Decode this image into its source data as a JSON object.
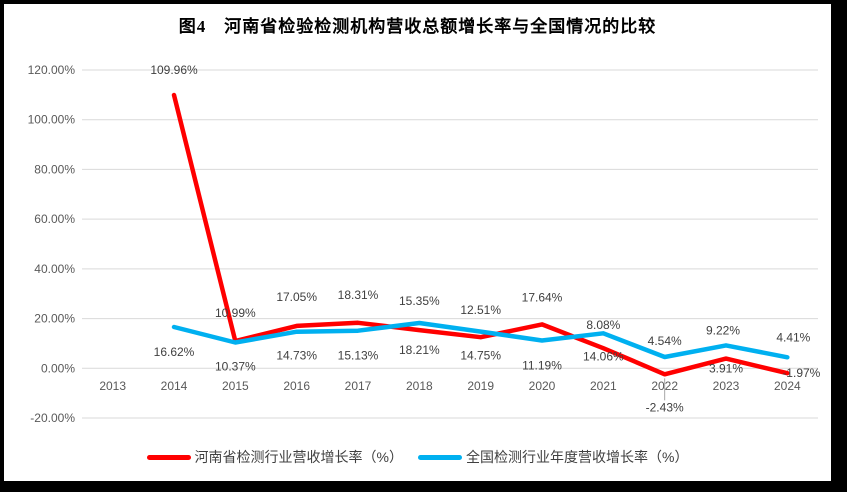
{
  "title": "图4　河南省检验检测机构营收总额增长率与全国情况的比较",
  "chart_data": {
    "type": "line",
    "title": "图4　河南省检验检测机构营收总额增长率与全国情况的比较",
    "categories": [
      "2013",
      "2014",
      "2015",
      "2016",
      "2017",
      "2018",
      "2019",
      "2020",
      "2021",
      "2022",
      "2023",
      "2024"
    ],
    "series": [
      {
        "name": "河南省检测行业营收增长率（%）",
        "color": "#ff0000",
        "values": [
          null,
          109.96,
          10.99,
          17.05,
          18.31,
          15.35,
          12.51,
          17.64,
          8.08,
          -2.43,
          3.91,
          -1.97
        ],
        "labels": [
          "",
          "109.96%",
          "10.99%",
          "17.05%",
          "18.31%",
          "15.35%",
          "12.51%",
          "17.64%",
          "8.08%",
          "-2.43%",
          "3.91%",
          "-1.97%"
        ],
        "label_dx": [
          0,
          0,
          0,
          0,
          0,
          0,
          0,
          0,
          0,
          0,
          0,
          14
        ],
        "label_dy": [
          0,
          -25,
          -28,
          -29,
          -28,
          -29,
          -27,
          -27,
          -23,
          33,
          10,
          0
        ],
        "label_leader_index": 9
      },
      {
        "name": "全国检测行业年度营收增长率（%）",
        "color": "#00b0f0",
        "values": [
          null,
          16.62,
          10.37,
          14.73,
          15.13,
          18.21,
          14.75,
          11.19,
          14.06,
          4.54,
          9.22,
          4.41
        ],
        "labels": [
          "",
          "16.62%",
          "10.37%",
          "14.73%",
          "15.13%",
          "18.21%",
          "14.75%",
          "11.19%",
          "14.06%",
          "4.54%",
          "9.22%",
          "4.41%"
        ],
        "label_dx": [
          0,
          0,
          0,
          0,
          0,
          0,
          0,
          0,
          0,
          0,
          -3,
          6
        ],
        "label_dy": [
          0,
          25,
          24,
          24,
          25,
          27,
          24,
          25,
          23,
          -16,
          -15,
          -20
        ]
      }
    ],
    "y_axis": {
      "ticks": [
        "120.00%",
        "100.00%",
        "80.00%",
        "60.00%",
        "40.00%",
        "20.00%",
        "0.00%",
        "-20.00%"
      ],
      "min": -20,
      "max": 120,
      "step": 20
    },
    "grid": true,
    "legend_position": "bottom",
    "colors": {
      "gridline": "#d9d9d9",
      "axis_text": "#595959",
      "data_label_text": "#404040",
      "leader_line": "#a6a6a6",
      "frame_border": "#000000",
      "background": "#ffffff"
    }
  }
}
